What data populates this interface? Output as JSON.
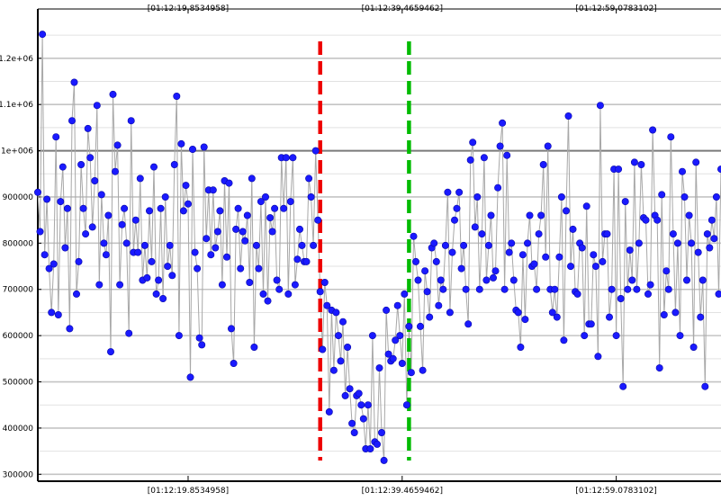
{
  "chart_data": {
    "type": "scatter",
    "title": "",
    "xlabel": "",
    "ylabel": "",
    "x_tick_labels": [
      "[01:12:19.8534958]",
      "[01:12:39.4659462]",
      "[01:12:59.0783102]"
    ],
    "y_tick_labels": [
      "300000",
      "400000",
      "500000",
      "600000",
      "700000",
      "800000",
      "900000",
      "1e+006",
      "1.1e+06",
      "1.2e+06"
    ],
    "y_ticks": [
      300000,
      400000,
      500000,
      600000,
      700000,
      800000,
      900000,
      1000000,
      1100000,
      1200000
    ],
    "ylim": [
      285000,
      1295000
    ],
    "x_range": [
      0,
      300
    ],
    "x_tick_positions": [
      66,
      160,
      254
    ],
    "grid": true,
    "series": [
      {
        "color": "#1a1aff",
        "line_color": "#a8a8a8",
        "points": [
          [
            0,
            910000
          ],
          [
            1,
            825000
          ],
          [
            2,
            1252000
          ],
          [
            3,
            775000
          ],
          [
            4,
            895000
          ],
          [
            5,
            745000
          ],
          [
            6,
            650000
          ],
          [
            7,
            755000
          ],
          [
            8,
            1030000
          ],
          [
            9,
            645000
          ],
          [
            10,
            890000
          ],
          [
            11,
            965000
          ],
          [
            12,
            790000
          ],
          [
            13,
            875000
          ],
          [
            14,
            615000
          ],
          [
            15,
            1065000
          ],
          [
            16,
            1148000
          ],
          [
            17,
            690000
          ],
          [
            18,
            760000
          ],
          [
            19,
            970000
          ],
          [
            20,
            875000
          ],
          [
            21,
            820000
          ],
          [
            22,
            1048000
          ],
          [
            23,
            985000
          ],
          [
            24,
            835000
          ],
          [
            25,
            935000
          ],
          [
            26,
            1098000
          ],
          [
            27,
            710000
          ],
          [
            28,
            905000
          ],
          [
            29,
            800000
          ],
          [
            30,
            775000
          ],
          [
            31,
            860000
          ],
          [
            32,
            565000
          ],
          [
            33,
            1122000
          ],
          [
            34,
            955000
          ],
          [
            35,
            1012000
          ],
          [
            36,
            710000
          ],
          [
            37,
            840000
          ],
          [
            38,
            875000
          ],
          [
            39,
            800000
          ],
          [
            40,
            605000
          ],
          [
            41,
            1065000
          ],
          [
            42,
            780000
          ],
          [
            43,
            850000
          ],
          [
            44,
            780000
          ],
          [
            45,
            940000
          ],
          [
            46,
            720000
          ],
          [
            47,
            795000
          ],
          [
            48,
            725000
          ],
          [
            49,
            870000
          ],
          [
            50,
            760000
          ],
          [
            51,
            965000
          ],
          [
            52,
            690000
          ],
          [
            53,
            720000
          ],
          [
            54,
            875000
          ],
          [
            55,
            680000
          ],
          [
            56,
            900000
          ],
          [
            57,
            750000
          ],
          [
            58,
            795000
          ],
          [
            59,
            730000
          ],
          [
            60,
            970000
          ],
          [
            61,
            1118000
          ],
          [
            62,
            600000
          ],
          [
            63,
            1015000
          ],
          [
            64,
            870000
          ],
          [
            65,
            925000
          ],
          [
            66,
            885000
          ],
          [
            67,
            510000
          ],
          [
            68,
            1003000
          ],
          [
            69,
            780000
          ],
          [
            70,
            745000
          ],
          [
            71,
            595000
          ],
          [
            72,
            580000
          ],
          [
            73,
            1008000
          ],
          [
            74,
            810000
          ],
          [
            75,
            915000
          ],
          [
            76,
            775000
          ],
          [
            77,
            915000
          ],
          [
            78,
            790000
          ],
          [
            79,
            825000
          ],
          [
            80,
            870000
          ],
          [
            81,
            710000
          ],
          [
            82,
            935000
          ],
          [
            83,
            770000
          ],
          [
            84,
            930000
          ],
          [
            85,
            615000
          ],
          [
            86,
            540000
          ],
          [
            87,
            830000
          ],
          [
            88,
            875000
          ],
          [
            89,
            745000
          ],
          [
            90,
            825000
          ],
          [
            91,
            805000
          ],
          [
            92,
            860000
          ],
          [
            93,
            715000
          ],
          [
            94,
            940000
          ],
          [
            95,
            575000
          ],
          [
            96,
            795000
          ],
          [
            97,
            745000
          ],
          [
            98,
            890000
          ],
          [
            99,
            690000
          ],
          [
            100,
            900000
          ],
          [
            101,
            675000
          ],
          [
            102,
            855000
          ],
          [
            103,
            825000
          ],
          [
            104,
            875000
          ],
          [
            105,
            720000
          ],
          [
            106,
            700000
          ],
          [
            107,
            985000
          ],
          [
            108,
            875000
          ],
          [
            109,
            985000
          ],
          [
            110,
            690000
          ],
          [
            111,
            890000
          ],
          [
            112,
            985000
          ],
          [
            113,
            710000
          ],
          [
            114,
            765000
          ],
          [
            115,
            830000
          ],
          [
            116,
            795000
          ],
          [
            117,
            760000
          ],
          [
            118,
            760000
          ],
          [
            119,
            940000
          ],
          [
            120,
            900000
          ],
          [
            121,
            795000
          ],
          [
            122,
            1000000
          ],
          [
            123,
            850000
          ],
          [
            124,
            695000
          ],
          [
            125,
            570000
          ],
          [
            126,
            715000
          ],
          [
            127,
            665000
          ],
          [
            128,
            435000
          ],
          [
            129,
            655000
          ],
          [
            130,
            525000
          ],
          [
            131,
            650000
          ],
          [
            132,
            600000
          ],
          [
            133,
            545000
          ],
          [
            134,
            630000
          ],
          [
            135,
            470000
          ],
          [
            136,
            575000
          ],
          [
            137,
            485000
          ],
          [
            138,
            410000
          ],
          [
            139,
            390000
          ],
          [
            140,
            470000
          ],
          [
            141,
            475000
          ],
          [
            142,
            450000
          ],
          [
            143,
            420000
          ],
          [
            144,
            355000
          ],
          [
            145,
            450000
          ],
          [
            146,
            355000
          ],
          [
            147,
            600000
          ],
          [
            148,
            370000
          ],
          [
            149,
            365000
          ],
          [
            150,
            530000
          ],
          [
            151,
            390000
          ],
          [
            152,
            330000
          ],
          [
            153,
            655000
          ],
          [
            154,
            560000
          ],
          [
            155,
            545000
          ],
          [
            156,
            550000
          ],
          [
            157,
            590000
          ],
          [
            158,
            665000
          ],
          [
            159,
            600000
          ],
          [
            160,
            540000
          ],
          [
            161,
            690000
          ],
          [
            162,
            450000
          ],
          [
            163,
            620000
          ],
          [
            164,
            520000
          ],
          [
            165,
            815000
          ],
          [
            166,
            760000
          ],
          [
            167,
            720000
          ],
          [
            168,
            620000
          ],
          [
            169,
            525000
          ],
          [
            170,
            740000
          ],
          [
            171,
            695000
          ],
          [
            172,
            640000
          ],
          [
            173,
            790000
          ],
          [
            174,
            800000
          ],
          [
            175,
            760000
          ],
          [
            176,
            665000
          ],
          [
            177,
            720000
          ],
          [
            178,
            700000
          ],
          [
            179,
            795000
          ],
          [
            180,
            910000
          ],
          [
            181,
            650000
          ],
          [
            182,
            780000
          ],
          [
            183,
            850000
          ],
          [
            184,
            875000
          ],
          [
            185,
            910000
          ],
          [
            186,
            745000
          ],
          [
            187,
            795000
          ],
          [
            188,
            700000
          ],
          [
            189,
            625000
          ],
          [
            190,
            980000
          ],
          [
            191,
            1018000
          ],
          [
            192,
            835000
          ],
          [
            193,
            900000
          ],
          [
            194,
            700000
          ],
          [
            195,
            820000
          ],
          [
            196,
            985000
          ],
          [
            197,
            720000
          ],
          [
            198,
            795000
          ],
          [
            199,
            860000
          ],
          [
            200,
            725000
          ],
          [
            201,
            740000
          ],
          [
            202,
            920000
          ],
          [
            203,
            1010000
          ],
          [
            204,
            1060000
          ],
          [
            205,
            700000
          ],
          [
            206,
            990000
          ],
          [
            207,
            780000
          ],
          [
            208,
            800000
          ],
          [
            209,
            720000
          ],
          [
            210,
            655000
          ],
          [
            211,
            650000
          ],
          [
            212,
            575000
          ],
          [
            213,
            775000
          ],
          [
            214,
            635000
          ],
          [
            215,
            800000
          ],
          [
            216,
            860000
          ],
          [
            217,
            750000
          ],
          [
            218,
            755000
          ],
          [
            219,
            700000
          ],
          [
            220,
            820000
          ],
          [
            221,
            860000
          ],
          [
            222,
            970000
          ],
          [
            223,
            770000
          ],
          [
            224,
            1010000
          ],
          [
            225,
            700000
          ],
          [
            226,
            650000
          ],
          [
            227,
            700000
          ],
          [
            228,
            640000
          ],
          [
            229,
            770000
          ],
          [
            230,
            900000
          ],
          [
            231,
            590000
          ],
          [
            232,
            870000
          ],
          [
            233,
            1075000
          ],
          [
            234,
            750000
          ],
          [
            235,
            830000
          ],
          [
            236,
            695000
          ],
          [
            237,
            690000
          ],
          [
            238,
            800000
          ],
          [
            239,
            790000
          ],
          [
            240,
            600000
          ],
          [
            241,
            880000
          ],
          [
            242,
            625000
          ],
          [
            243,
            625000
          ],
          [
            244,
            775000
          ],
          [
            245,
            750000
          ],
          [
            246,
            555000
          ],
          [
            247,
            1098000
          ],
          [
            248,
            760000
          ],
          [
            249,
            820000
          ],
          [
            250,
            820000
          ],
          [
            251,
            640000
          ],
          [
            252,
            700000
          ],
          [
            253,
            960000
          ],
          [
            254,
            600000
          ],
          [
            255,
            960000
          ],
          [
            256,
            680000
          ],
          [
            257,
            490000
          ],
          [
            258,
            890000
          ],
          [
            259,
            700000
          ],
          [
            260,
            785000
          ],
          [
            261,
            720000
          ],
          [
            262,
            975000
          ],
          [
            263,
            700000
          ],
          [
            264,
            800000
          ],
          [
            265,
            970000
          ],
          [
            266,
            855000
          ],
          [
            267,
            850000
          ],
          [
            268,
            690000
          ],
          [
            269,
            710000
          ],
          [
            270,
            1045000
          ],
          [
            271,
            860000
          ],
          [
            272,
            850000
          ],
          [
            273,
            530000
          ],
          [
            274,
            905000
          ],
          [
            275,
            645000
          ],
          [
            276,
            740000
          ],
          [
            277,
            700000
          ],
          [
            278,
            1030000
          ],
          [
            279,
            820000
          ],
          [
            280,
            650000
          ],
          [
            281,
            800000
          ],
          [
            282,
            600000
          ],
          [
            283,
            955000
          ],
          [
            284,
            900000
          ],
          [
            285,
            720000
          ],
          [
            286,
            860000
          ],
          [
            287,
            800000
          ],
          [
            288,
            575000
          ],
          [
            289,
            975000
          ],
          [
            290,
            780000
          ],
          [
            291,
            640000
          ],
          [
            292,
            720000
          ],
          [
            293,
            490000
          ],
          [
            294,
            820000
          ],
          [
            295,
            790000
          ],
          [
            296,
            850000
          ],
          [
            297,
            810000
          ],
          [
            298,
            900000
          ],
          [
            299,
            690000
          ],
          [
            300,
            960000
          ]
        ]
      }
    ],
    "markers": [
      {
        "x": 124,
        "color": "#ee0000"
      },
      {
        "x": 163,
        "color": "#00bb00"
      }
    ]
  }
}
